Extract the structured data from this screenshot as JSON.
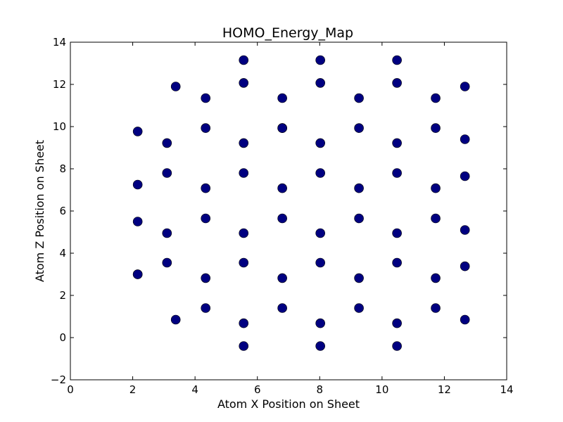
{
  "chart_data": {
    "type": "scatter",
    "title": "HOMO_Energy_Map",
    "xlabel": "Atom X Position on Sheet",
    "ylabel": "Atom Z Position on Sheet",
    "xlim": [
      0,
      14
    ],
    "ylim": [
      -2,
      14
    ],
    "xticks": [
      0,
      2,
      4,
      6,
      8,
      10,
      12,
      14
    ],
    "yticks": [
      -2,
      0,
      2,
      4,
      6,
      8,
      10,
      12,
      14
    ],
    "xtick_labels": [
      "0",
      "2",
      "4",
      "6",
      "8",
      "10",
      "12",
      "14"
    ],
    "ytick_labels": [
      "−2",
      "0",
      "2",
      "4",
      "6",
      "8",
      "10",
      "12",
      "14"
    ],
    "grid": false,
    "marker_color": "#000080",
    "series": [
      {
        "x": [
          5.56,
          8.02,
          10.48,
          5.56,
          8.02,
          10.48,
          3.38,
          12.66,
          4.34,
          6.8,
          9.26,
          11.72,
          2.16,
          4.34,
          11.72,
          3.1,
          5.56,
          8.02,
          10.48,
          12.66,
          2.16,
          3.1,
          5.56,
          8.02,
          10.48,
          12.66,
          4.34,
          6.8,
          9.26,
          11.72,
          2.16,
          6.8,
          4.34,
          6.8,
          9.26,
          11.72,
          2.16,
          3.1,
          5.56,
          8.02,
          10.48,
          12.66,
          3.1,
          5.56,
          8.02,
          10.48,
          12.66,
          2.16,
          4.34,
          6.8,
          9.26,
          11.72,
          4.34,
          6.8,
          9.26,
          11.72,
          3.38,
          12.66,
          5.56,
          8.02,
          10.48,
          5.56,
          8.02,
          10.48,
          6.8,
          9.26
        ],
        "y": [
          13.15,
          13.15,
          13.15,
          12.07,
          12.07,
          12.07,
          11.9,
          11.9,
          11.35,
          11.35,
          11.35,
          11.35,
          9.77,
          9.93,
          9.93,
          9.22,
          9.22,
          9.22,
          9.22,
          9.4,
          7.25,
          7.8,
          7.8,
          7.8,
          7.8,
          7.65,
          7.08,
          7.08,
          7.08,
          7.08,
          5.5,
          9.93,
          5.65,
          5.65,
          5.65,
          5.65,
          3.0,
          4.95,
          4.95,
          4.95,
          4.95,
          5.1,
          3.55,
          3.55,
          3.55,
          3.55,
          3.38,
          3.0,
          2.82,
          2.82,
          2.82,
          2.82,
          1.4,
          1.4,
          1.4,
          1.4,
          0.85,
          0.85,
          0.68,
          0.68,
          0.68,
          -0.4,
          -0.4,
          -0.4,
          9.93,
          9.93
        ]
      }
    ]
  }
}
